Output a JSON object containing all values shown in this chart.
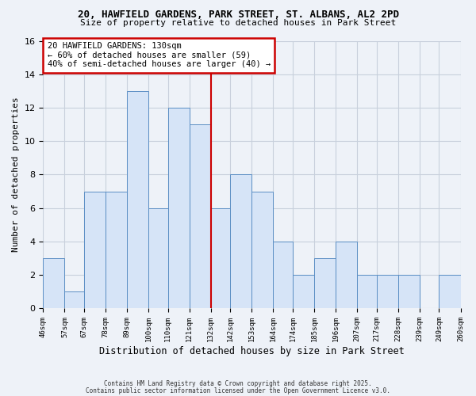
{
  "title_line1": "20, HAWFIELD GARDENS, PARK STREET, ST. ALBANS, AL2 2PD",
  "title_line2": "Size of property relative to detached houses in Park Street",
  "xlabel": "Distribution of detached houses by size in Park Street",
  "ylabel": "Number of detached properties",
  "bar_left_edges": [
    46,
    57,
    67,
    78,
    89,
    100,
    110,
    121,
    132,
    142,
    153,
    164,
    174,
    185,
    196,
    207,
    217,
    228,
    239,
    249
  ],
  "bar_widths": [
    11,
    10,
    11,
    11,
    11,
    10,
    11,
    11,
    10,
    11,
    11,
    10,
    11,
    11,
    11,
    10,
    11,
    11,
    10,
    11
  ],
  "bar_heights": [
    3,
    1,
    7,
    7,
    13,
    6,
    12,
    11,
    6,
    8,
    7,
    4,
    2,
    3,
    4,
    2,
    2,
    2,
    0,
    2
  ],
  "bar_face_color": "#d6e4f7",
  "bar_edge_color": "#5b8ec4",
  "property_line_x": 132,
  "property_line_color": "#cc0000",
  "annotation_line1": "20 HAWFIELD GARDENS: 130sqm",
  "annotation_line2": "← 60% of detached houses are smaller (59)",
  "annotation_line3": "40% of semi-detached houses are larger (40) →",
  "annotation_box_color": "#cc0000",
  "annotation_box_facecolor": "#ffffff",
  "tick_labels": [
    "46sqm",
    "57sqm",
    "67sqm",
    "78sqm",
    "89sqm",
    "100sqm",
    "110sqm",
    "121sqm",
    "132sqm",
    "142sqm",
    "153sqm",
    "164sqm",
    "174sqm",
    "185sqm",
    "196sqm",
    "207sqm",
    "217sqm",
    "228sqm",
    "239sqm",
    "249sqm",
    "260sqm"
  ],
  "ylim": [
    0,
    16
  ],
  "yticks": [
    0,
    2,
    4,
    6,
    8,
    10,
    12,
    14,
    16
  ],
  "grid_color": "#c8d0dc",
  "background_color": "#eef2f8",
  "footer_line1": "Contains HM Land Registry data © Crown copyright and database right 2025.",
  "footer_line2": "Contains public sector information licensed under the Open Government Licence v3.0."
}
